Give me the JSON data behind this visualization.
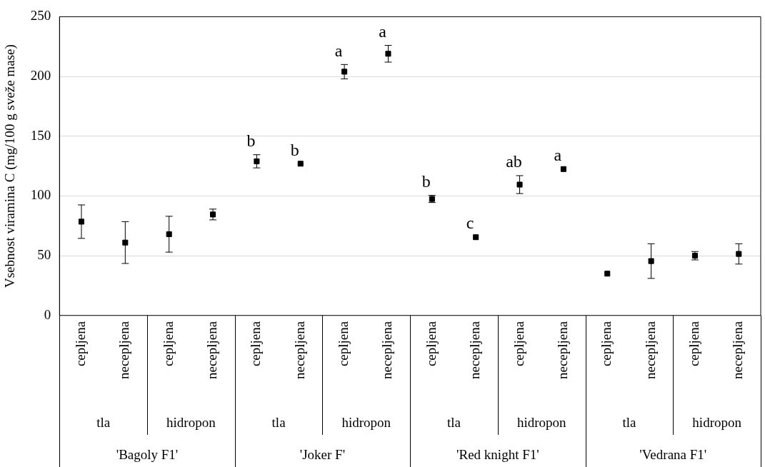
{
  "chart_data": {
    "type": "scatter",
    "ylabel": "Vsebnost viramina C (mg/100 g sveže mase)",
    "categories": [
      "cepljena",
      "necepljena",
      "cepljena",
      "necepljena",
      "cepljena",
      "necepljena",
      "cepljena",
      "necepljena",
      "cepljena",
      "necepljena",
      "cepljena",
      "necepljena",
      "cepljena",
      "necepljena",
      "cepljena",
      "necepljena"
    ],
    "annotations": [
      "tla",
      "hidropon",
      "tla",
      "hidropon",
      "tla",
      "hidropon",
      "tla",
      "hidropon",
      "'Bagoly F1'",
      "'Joker F'",
      "'Red knight F1'",
      "'Vedrana F1'"
    ],
    "series": [
      {
        "color": "#000000",
        "values": [
          78.5,
          61,
          68,
          84.5,
          129,
          127,
          204,
          219,
          97.5,
          65.5,
          109.5,
          122.5,
          35,
          45.5,
          50,
          51.5
        ],
        "errors": [
          14,
          17.5,
          15,
          4.5,
          5.5,
          null,
          6,
          7,
          3,
          null,
          7.5,
          null,
          null,
          14.5,
          3.5,
          8.5
        ],
        "value_labels": [
          null,
          null,
          null,
          null,
          "b",
          "b",
          "a",
          "a",
          "b",
          "c",
          "ab",
          "a",
          null,
          null,
          null,
          null
        ]
      }
    ],
    "marker": "square",
    "ylim": [
      0,
      250
    ],
    "yticks": [
      0,
      50,
      100,
      150,
      200,
      250
    ],
    "grid": "y",
    "legend": false
  }
}
